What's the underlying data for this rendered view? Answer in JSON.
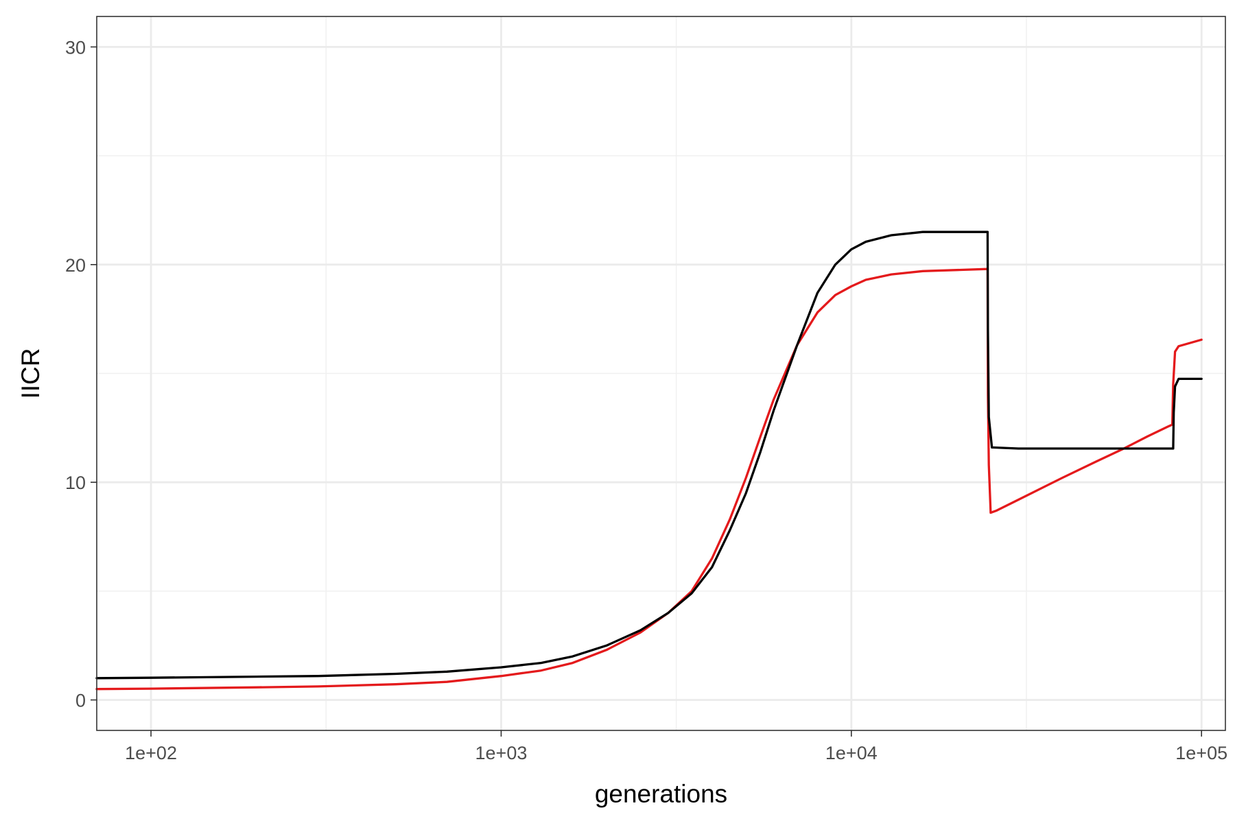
{
  "chart_data": {
    "type": "line",
    "title": "",
    "xlabel": "generations",
    "ylabel": "IICR",
    "xscale": "log10",
    "xlim": [
      70,
      117000
    ],
    "ylim": [
      -1.4,
      31.4
    ],
    "grid": true,
    "legend": "none",
    "x_ticks": [
      {
        "value": 100,
        "label": "1e+02"
      },
      {
        "value": 1000,
        "label": "1e+03"
      },
      {
        "value": 10000,
        "label": "1e+04"
      },
      {
        "value": 100000,
        "label": "1e+05"
      }
    ],
    "y_ticks": [
      {
        "value": 0,
        "label": "0"
      },
      {
        "value": 10,
        "label": "10"
      },
      {
        "value": 20,
        "label": "20"
      },
      {
        "value": 30,
        "label": "30"
      }
    ],
    "series": [
      {
        "color": "#e41a1c",
        "points": [
          [
            70,
            0.5
          ],
          [
            100,
            0.52
          ],
          [
            200,
            0.58
          ],
          [
            300,
            0.62
          ],
          [
            500,
            0.72
          ],
          [
            700,
            0.83
          ],
          [
            1000,
            1.1
          ],
          [
            1300,
            1.35
          ],
          [
            1600,
            1.7
          ],
          [
            2000,
            2.3
          ],
          [
            2500,
            3.1
          ],
          [
            3000,
            4.0
          ],
          [
            3500,
            5.0
          ],
          [
            4000,
            6.5
          ],
          [
            4500,
            8.3
          ],
          [
            5000,
            10.2
          ],
          [
            5500,
            12.1
          ],
          [
            6000,
            13.8
          ],
          [
            7000,
            16.3
          ],
          [
            8000,
            17.8
          ],
          [
            9000,
            18.6
          ],
          [
            10000,
            19.0
          ],
          [
            11000,
            19.3
          ],
          [
            13000,
            19.55
          ],
          [
            16000,
            19.7
          ],
          [
            20000,
            19.75
          ],
          [
            24500,
            19.8
          ],
          [
            24550,
            14.0
          ],
          [
            24700,
            10.8
          ],
          [
            25000,
            8.6
          ],
          [
            26000,
            8.7
          ],
          [
            30000,
            9.2
          ],
          [
            40000,
            10.2
          ],
          [
            50000,
            10.95
          ],
          [
            60000,
            11.55
          ],
          [
            70000,
            12.1
          ],
          [
            80000,
            12.55
          ],
          [
            82500,
            12.65
          ],
          [
            83000,
            14.5
          ],
          [
            84000,
            16.0
          ],
          [
            86000,
            16.25
          ],
          [
            100000,
            16.55
          ]
        ]
      },
      {
        "color": "#000000",
        "points": [
          [
            70,
            1.0
          ],
          [
            100,
            1.02
          ],
          [
            200,
            1.07
          ],
          [
            300,
            1.1
          ],
          [
            500,
            1.2
          ],
          [
            700,
            1.3
          ],
          [
            1000,
            1.5
          ],
          [
            1300,
            1.7
          ],
          [
            1600,
            2.0
          ],
          [
            2000,
            2.5
          ],
          [
            2500,
            3.2
          ],
          [
            3000,
            4.0
          ],
          [
            3500,
            4.9
          ],
          [
            4000,
            6.1
          ],
          [
            4500,
            7.8
          ],
          [
            5000,
            9.5
          ],
          [
            5500,
            11.4
          ],
          [
            6000,
            13.3
          ],
          [
            7000,
            16.3
          ],
          [
            8000,
            18.7
          ],
          [
            9000,
            20.0
          ],
          [
            10000,
            20.7
          ],
          [
            11000,
            21.05
          ],
          [
            13000,
            21.35
          ],
          [
            16000,
            21.5
          ],
          [
            20000,
            21.5
          ],
          [
            24500,
            21.5
          ],
          [
            24550,
            17.0
          ],
          [
            24700,
            13.0
          ],
          [
            25200,
            11.6
          ],
          [
            30000,
            11.55
          ],
          [
            50000,
            11.55
          ],
          [
            70000,
            11.55
          ],
          [
            83000,
            11.55
          ],
          [
            83300,
            13.2
          ],
          [
            84000,
            14.4
          ],
          [
            86000,
            14.75
          ],
          [
            100000,
            14.75
          ]
        ]
      }
    ]
  }
}
